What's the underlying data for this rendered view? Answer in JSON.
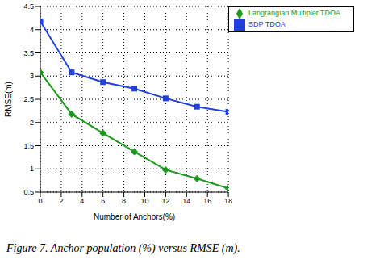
{
  "chart_data": {
    "type": "line",
    "caption": "Figure 7. Anchor population (%) versus RMSE (m).",
    "x_label": "Number of Anchors(%)",
    "y_label": "RMSE(m)",
    "x": [
      0,
      3,
      6,
      9,
      12,
      15,
      18
    ],
    "series": [
      {
        "name": "SDP TDOA",
        "color": "#1f3fe0",
        "marker": "square",
        "values": [
          4.18,
          3.08,
          2.87,
          2.73,
          2.52,
          2.34,
          2.23
        ]
      },
      {
        "name": "Langrangian Multipler TDOA",
        "color": "#1a9a1a",
        "marker": "diamond",
        "values": [
          3.08,
          2.18,
          1.77,
          1.37,
          0.98,
          0.79,
          0.58
        ]
      }
    ],
    "xlim": [
      0,
      18
    ],
    "xticks": [
      0,
      2,
      4,
      6,
      8,
      10,
      12,
      14,
      16,
      18
    ],
    "ylim": [
      0.5,
      4.5
    ],
    "yticks": [
      0.5,
      1,
      1.5,
      2,
      2.5,
      3,
      3.5,
      4,
      4.5
    ],
    "grid": true,
    "legend": "upper right"
  }
}
